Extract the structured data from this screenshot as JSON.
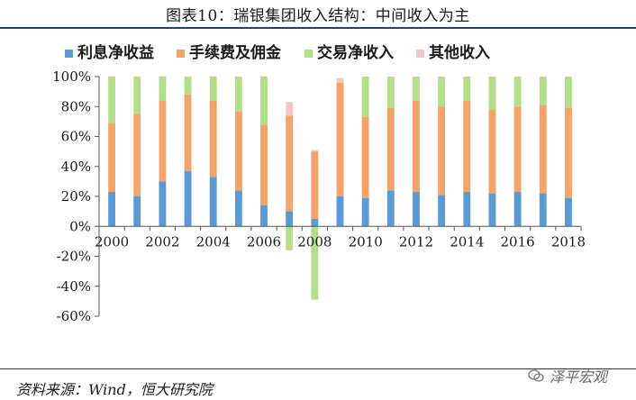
{
  "header": {
    "title": "图表10：瑞银集团收入结构：中间收入为主"
  },
  "footer": {
    "source": "资料来源：Wind，恒大研究院",
    "watermark": "泽平宏观"
  },
  "colors": {
    "interest": "#5b9bd5",
    "fees": "#f4a36a",
    "trading": "#b3de8a",
    "other": "#f7c6c4"
  },
  "chart_data": {
    "type": "bar",
    "stacked": true,
    "title": "",
    "xlabel": "",
    "ylabel": "",
    "ylim": [
      -0.6,
      1.0
    ],
    "y_ticks": [
      "-60%",
      "-40%",
      "-20%",
      "0%",
      "20%",
      "40%",
      "60%",
      "80%",
      "100%"
    ],
    "x_tick_labels": [
      "2000",
      "2002",
      "2004",
      "2006",
      "2008",
      "2010",
      "2012",
      "2014",
      "2016",
      "2018"
    ],
    "legend_position": "top",
    "grid": false,
    "categories": [
      "2000",
      "2001",
      "2002",
      "2003",
      "2004",
      "2005",
      "2006",
      "2007",
      "2008",
      "2009",
      "2010",
      "2011",
      "2012",
      "2013",
      "2014",
      "2015",
      "2016",
      "2017",
      "2018"
    ],
    "series": [
      {
        "name": "利息净收益",
        "values": [
          0.23,
          0.2,
          0.3,
          0.37,
          0.33,
          0.24,
          0.14,
          0.1,
          0.05,
          0.2,
          0.19,
          0.24,
          0.23,
          0.21,
          0.23,
          0.22,
          0.23,
          0.22,
          0.19
        ]
      },
      {
        "name": "手续费及佣金",
        "values": [
          0.46,
          0.55,
          0.54,
          0.51,
          0.51,
          0.53,
          0.54,
          0.64,
          0.45,
          0.76,
          0.54,
          0.55,
          0.61,
          0.59,
          0.61,
          0.56,
          0.57,
          0.59,
          0.6
        ]
      },
      {
        "name": "交易净收入",
        "values": [
          0.31,
          0.25,
          0.16,
          0.12,
          0.16,
          0.23,
          0.32,
          -0.16,
          -0.49,
          0.0,
          0.27,
          0.21,
          0.16,
          0.2,
          0.16,
          0.22,
          0.2,
          0.19,
          0.21
        ]
      },
      {
        "name": "其他收入",
        "values": [
          0.0,
          0.0,
          0.0,
          0.0,
          0.0,
          0.0,
          0.0,
          0.09,
          0.01,
          0.03,
          0.0,
          0.0,
          0.0,
          0.0,
          0.0,
          0.0,
          0.0,
          0.0,
          0.0
        ]
      }
    ]
  }
}
